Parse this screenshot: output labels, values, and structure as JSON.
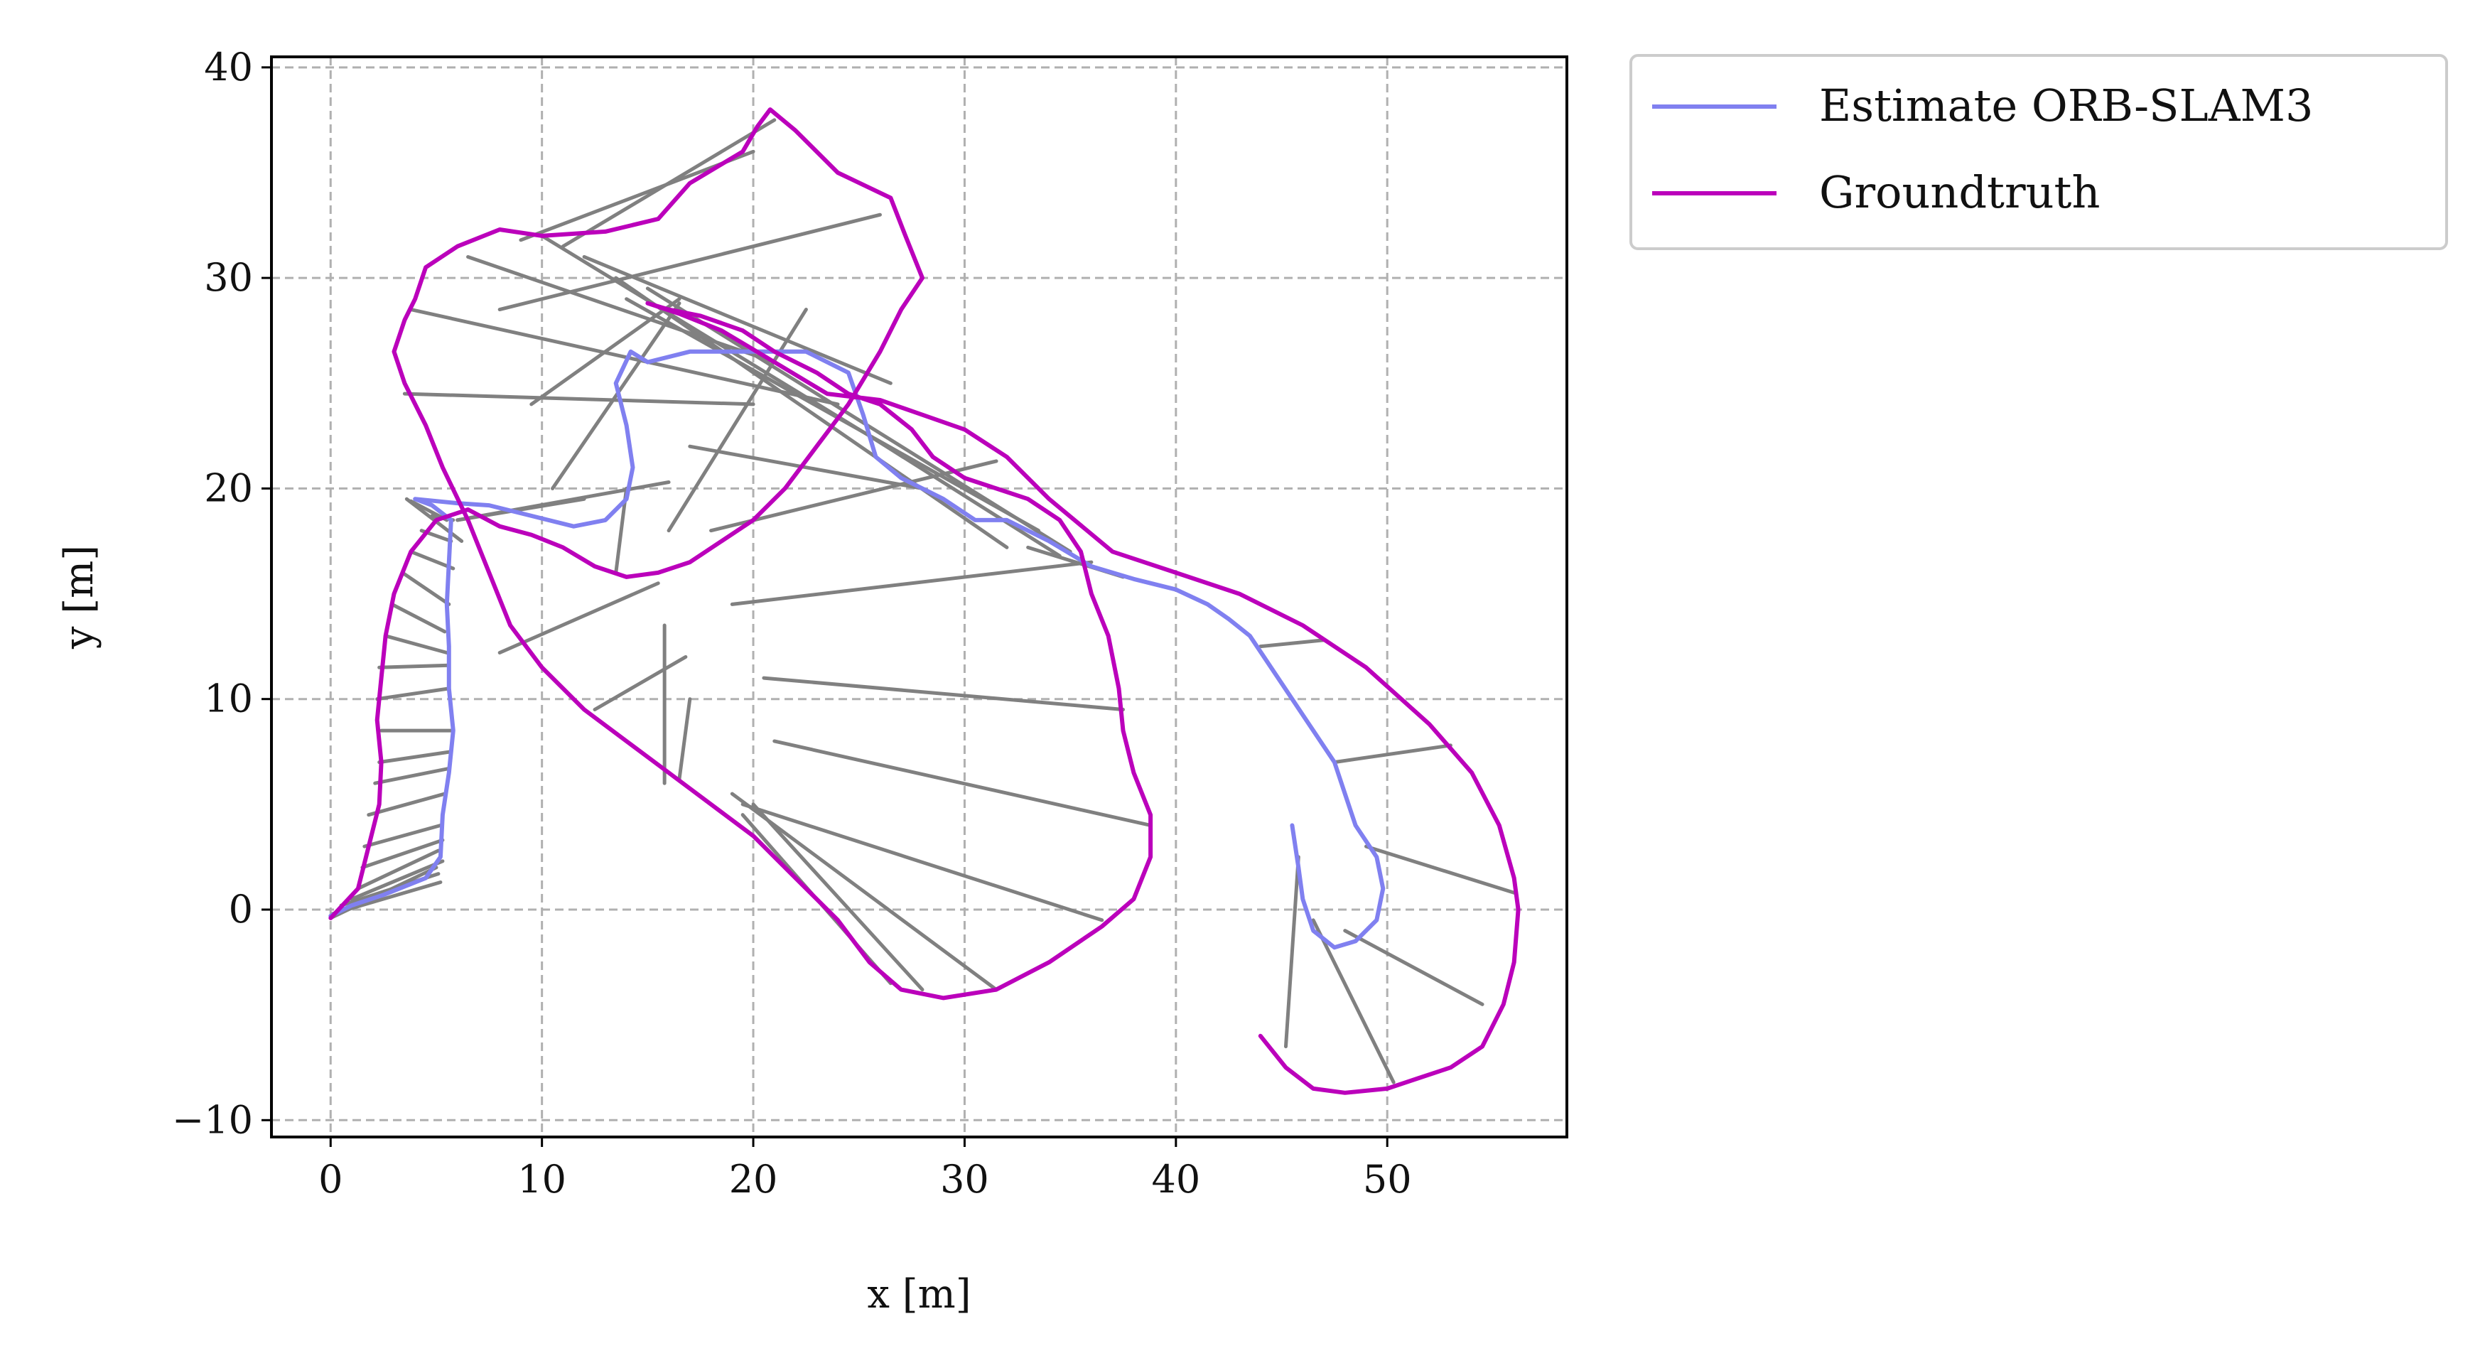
{
  "chart_data": {
    "type": "line",
    "xlabel": "x [m]",
    "ylabel": "y [m]",
    "xlim": [
      -2.8,
      58.5
    ],
    "ylim": [
      -10.8,
      40.5
    ],
    "xticks": [
      0,
      10,
      20,
      30,
      40,
      50
    ],
    "yticks": [
      -10,
      0,
      10,
      20,
      30,
      40
    ],
    "xtick_labels": [
      "0",
      "10",
      "20",
      "30",
      "40",
      "50"
    ],
    "ytick_labels": [
      "−10",
      "0",
      "10",
      "20",
      "30",
      "40"
    ],
    "grid": true,
    "legend_position": "outside-top-right",
    "colors": {
      "estimate": "#8080f0",
      "groundtruth": "#bb00bb",
      "error": "#808080"
    },
    "series": [
      {
        "name": "Estimate ORB-SLAM3",
        "points": [
          [
            0,
            -0.3
          ],
          [
            1,
            0.2
          ],
          [
            2.5,
            0.7
          ],
          [
            4.5,
            1.5
          ],
          [
            5.2,
            2.5
          ],
          [
            5.3,
            4.5
          ],
          [
            5.6,
            6.5
          ],
          [
            5.8,
            8.5
          ],
          [
            5.6,
            10.5
          ],
          [
            5.6,
            12.5
          ],
          [
            5.5,
            14.5
          ],
          [
            5.6,
            16.5
          ],
          [
            5.7,
            18.5
          ],
          [
            4.8,
            19.2
          ],
          [
            4.0,
            19.5
          ],
          [
            6.0,
            19.3
          ],
          [
            7.5,
            19.2
          ],
          [
            9.5,
            18.7
          ],
          [
            11.5,
            18.2
          ],
          [
            13.0,
            18.5
          ],
          [
            14.0,
            19.5
          ],
          [
            14.3,
            21.0
          ],
          [
            14.0,
            23.0
          ],
          [
            13.5,
            25.0
          ],
          [
            14.2,
            26.5
          ],
          [
            15.0,
            26.0
          ],
          [
            17.0,
            26.5
          ],
          [
            20.0,
            26.5
          ],
          [
            22.5,
            26.5
          ],
          [
            24.5,
            25.5
          ],
          [
            25.2,
            23.5
          ],
          [
            25.8,
            21.5
          ],
          [
            27.0,
            20.5
          ],
          [
            29.0,
            19.5
          ],
          [
            30.5,
            18.5
          ],
          [
            32.0,
            18.5
          ],
          [
            34.0,
            17.5
          ],
          [
            36.0,
            16.3
          ],
          [
            38.0,
            15.7
          ],
          [
            40.0,
            15.2
          ],
          [
            41.5,
            14.5
          ],
          [
            42.5,
            13.8
          ],
          [
            43.5,
            13.0
          ],
          [
            44.5,
            11.5
          ],
          [
            45.5,
            10.0
          ],
          [
            46.5,
            8.5
          ],
          [
            47.5,
            7.0
          ],
          [
            48.0,
            5.5
          ],
          [
            48.5,
            4.0
          ],
          [
            49.5,
            2.5
          ],
          [
            49.8,
            1.0
          ],
          [
            49.5,
            -0.5
          ],
          [
            48.5,
            -1.5
          ],
          [
            47.5,
            -1.8
          ],
          [
            46.5,
            -1.0
          ],
          [
            46.0,
            0.5
          ],
          [
            45.8,
            2.0
          ],
          [
            45.5,
            4.0
          ]
        ]
      },
      {
        "name": "Groundtruth",
        "points": [
          [
            0,
            -0.4
          ],
          [
            1.3,
            1.0
          ],
          [
            1.8,
            3.0
          ],
          [
            2.3,
            5.0
          ],
          [
            2.4,
            7.0
          ],
          [
            2.2,
            9.0
          ],
          [
            2.4,
            11.0
          ],
          [
            2.6,
            13.0
          ],
          [
            3.0,
            15.0
          ],
          [
            3.8,
            17.0
          ],
          [
            5.0,
            18.5
          ],
          [
            6.5,
            19.0
          ],
          [
            8.0,
            18.2
          ],
          [
            9.5,
            17.8
          ],
          [
            11.0,
            17.2
          ],
          [
            12.5,
            16.3
          ],
          [
            14.0,
            15.8
          ],
          [
            15.5,
            16.0
          ],
          [
            17.0,
            16.5
          ],
          [
            18.5,
            17.5
          ],
          [
            20.0,
            18.5
          ],
          [
            21.5,
            20.0
          ],
          [
            23.0,
            22.0
          ],
          [
            24.5,
            24.0
          ],
          [
            26.0,
            26.5
          ],
          [
            27.0,
            28.5
          ],
          [
            28.0,
            30.0
          ],
          [
            27.2,
            32.0
          ],
          [
            26.5,
            33.8
          ],
          [
            24.0,
            35.0
          ],
          [
            22.0,
            37.0
          ],
          [
            20.8,
            38.0
          ],
          [
            20.2,
            37.2
          ],
          [
            19.5,
            36.0
          ],
          [
            17.0,
            34.5
          ],
          [
            15.5,
            32.8
          ],
          [
            13.0,
            32.2
          ],
          [
            10.0,
            32.0
          ],
          [
            8.0,
            32.3
          ],
          [
            6.0,
            31.5
          ],
          [
            4.5,
            30.5
          ],
          [
            4.0,
            29.0
          ],
          [
            3.5,
            28.0
          ],
          [
            3.0,
            26.5
          ],
          [
            3.5,
            25.0
          ],
          [
            4.5,
            23.0
          ],
          [
            5.3,
            21.0
          ],
          [
            6.5,
            18.5
          ],
          [
            7.5,
            16.0
          ],
          [
            8.5,
            13.5
          ],
          [
            10.0,
            11.5
          ],
          [
            12.0,
            9.5
          ],
          [
            14.0,
            8.0
          ],
          [
            16.0,
            6.5
          ],
          [
            18.0,
            5.0
          ],
          [
            20.0,
            3.5
          ],
          [
            22.0,
            1.5
          ],
          [
            24.0,
            -0.5
          ],
          [
            25.5,
            -2.5
          ],
          [
            27.0,
            -3.8
          ],
          [
            29.0,
            -4.2
          ],
          [
            31.5,
            -3.8
          ],
          [
            34.0,
            -2.5
          ],
          [
            36.5,
            -0.8
          ],
          [
            38.0,
            0.5
          ],
          [
            38.8,
            2.5
          ],
          [
            38.8,
            4.5
          ],
          [
            38.0,
            6.5
          ],
          [
            37.5,
            8.5
          ],
          [
            37.3,
            10.5
          ],
          [
            36.8,
            13.0
          ],
          [
            36.0,
            15.0
          ],
          [
            35.5,
            17.0
          ],
          [
            34.5,
            18.5
          ],
          [
            33.0,
            19.5
          ],
          [
            31.5,
            20.0
          ],
          [
            30.0,
            20.5
          ],
          [
            28.5,
            21.5
          ],
          [
            27.5,
            22.8
          ],
          [
            26.0,
            24.0
          ],
          [
            24.5,
            24.5
          ],
          [
            23.0,
            25.5
          ],
          [
            21.0,
            26.5
          ],
          [
            19.5,
            27.5
          ],
          [
            17.5,
            28.2
          ],
          [
            16.0,
            28.5
          ],
          [
            15.0,
            28.8
          ],
          [
            16.5,
            28.3
          ],
          [
            18.5,
            27.5
          ],
          [
            21.0,
            26.0
          ],
          [
            23.5,
            24.5
          ],
          [
            26.0,
            24.2
          ],
          [
            28.0,
            23.5
          ],
          [
            30.0,
            22.8
          ],
          [
            32.0,
            21.5
          ],
          [
            34.0,
            19.5
          ],
          [
            37.0,
            17.0
          ],
          [
            40.0,
            16.0
          ],
          [
            43.0,
            15.0
          ],
          [
            46.0,
            13.5
          ],
          [
            49.0,
            11.5
          ],
          [
            52.0,
            8.8
          ],
          [
            54.0,
            6.5
          ],
          [
            55.3,
            4.0
          ],
          [
            56.0,
            1.5
          ],
          [
            56.2,
            0
          ],
          [
            56.0,
            -2.5
          ],
          [
            55.5,
            -4.5
          ],
          [
            54.5,
            -6.5
          ],
          [
            53.0,
            -7.5
          ],
          [
            51.5,
            -8.0
          ],
          [
            50.0,
            -8.5
          ],
          [
            48.0,
            -8.7
          ],
          [
            46.5,
            -8.5
          ],
          [
            45.2,
            -7.5
          ],
          [
            44.0,
            -6.0
          ]
        ]
      }
    ],
    "error_segments": [
      [
        [
          0,
          -0.4
        ],
        [
          5.0,
          2.0
        ]
      ],
      [
        [
          0.1,
          -0.2
        ],
        [
          5.2,
          1.3
        ]
      ],
      [
        [
          0.5,
          0.2
        ],
        [
          5.1,
          1.7
        ]
      ],
      [
        [
          1.0,
          0.5
        ],
        [
          5.3,
          2.3
        ]
      ],
      [
        [
          1.3,
          1.0
        ],
        [
          5.1,
          2.8
        ]
      ],
      [
        [
          1.5,
          2.0
        ],
        [
          5.3,
          3.3
        ]
      ],
      [
        [
          1.6,
          3.0
        ],
        [
          5.2,
          4.0
        ]
      ],
      [
        [
          1.8,
          4.5
        ],
        [
          5.4,
          5.5
        ]
      ],
      [
        [
          2.1,
          6.0
        ],
        [
          5.6,
          6.7
        ]
      ],
      [
        [
          2.3,
          7.0
        ],
        [
          5.7,
          7.5
        ]
      ],
      [
        [
          2.4,
          8.5
        ],
        [
          5.8,
          8.5
        ]
      ],
      [
        [
          2.2,
          10.0
        ],
        [
          5.6,
          10.5
        ]
      ],
      [
        [
          2.3,
          11.5
        ],
        [
          5.6,
          11.6
        ]
      ],
      [
        [
          2.6,
          13.0
        ],
        [
          5.5,
          12.2
        ]
      ],
      [
        [
          2.9,
          14.5
        ],
        [
          5.4,
          13.2
        ]
      ],
      [
        [
          3.4,
          16.0
        ],
        [
          5.6,
          14.5
        ]
      ],
      [
        [
          3.8,
          17.0
        ],
        [
          5.8,
          16.2
        ]
      ],
      [
        [
          4.3,
          18.0
        ],
        [
          5.7,
          17.5
        ]
      ],
      [
        [
          4.8,
          18.7
        ],
        [
          5.8,
          18.5
        ]
      ],
      [
        [
          3.6,
          19.5
        ],
        [
          6.2,
          17.5
        ]
      ],
      [
        [
          3.8,
          19.4
        ],
        [
          5.5,
          18.5
        ]
      ],
      [
        [
          8.0,
          12.2
        ],
        [
          15.5,
          15.5
        ]
      ],
      [
        [
          12.5,
          9.5
        ],
        [
          16.8,
          12.0
        ]
      ],
      [
        [
          16.5,
          6.2
        ],
        [
          17.0,
          10.0
        ]
      ],
      [
        [
          15.8,
          6.0
        ],
        [
          15.8,
          13.5
        ]
      ],
      [
        [
          13.5,
          16.0
        ],
        [
          14.0,
          20.0
        ]
      ],
      [
        [
          6.0,
          18.5
        ],
        [
          16.0,
          20.3
        ]
      ],
      [
        [
          6.0,
          18.5
        ],
        [
          12.0,
          19.5
        ]
      ],
      [
        [
          10.5,
          20.0
        ],
        [
          16.5,
          28.8
        ]
      ],
      [
        [
          9.5,
          24.0
        ],
        [
          16.5,
          29.0
        ]
      ],
      [
        [
          3.5,
          24.5
        ],
        [
          20.0,
          24.0
        ]
      ],
      [
        [
          3.8,
          28.5
        ],
        [
          24.0,
          24.0
        ]
      ],
      [
        [
          6.5,
          31.0
        ],
        [
          21.0,
          26.0
        ]
      ],
      [
        [
          8.0,
          28.5
        ],
        [
          26.0,
          33.0
        ]
      ],
      [
        [
          11.0,
          31.5
        ],
        [
          21.0,
          37.5
        ]
      ],
      [
        [
          9.0,
          31.8
        ],
        [
          20.0,
          36.0
        ]
      ],
      [
        [
          10.0,
          32.0
        ],
        [
          25.5,
          22.5
        ]
      ],
      [
        [
          12.0,
          31.0
        ],
        [
          26.5,
          25.0
        ]
      ],
      [
        [
          16.0,
          18.0
        ],
        [
          22.5,
          28.5
        ]
      ],
      [
        [
          17.0,
          22.0
        ],
        [
          28.0,
          20.0
        ]
      ],
      [
        [
          19.0,
          14.5
        ],
        [
          36.0,
          16.5
        ]
      ],
      [
        [
          18.0,
          18.0
        ],
        [
          31.5,
          21.3
        ]
      ],
      [
        [
          20.5,
          11.0
        ],
        [
          37.5,
          9.5
        ]
      ],
      [
        [
          21.0,
          8.0
        ],
        [
          38.8,
          4.0
        ]
      ],
      [
        [
          19.5,
          5.0
        ],
        [
          36.5,
          -0.5
        ]
      ],
      [
        [
          19.0,
          5.5
        ],
        [
          31.5,
          -3.8
        ]
      ],
      [
        [
          19.5,
          4.5
        ],
        [
          26.5,
          -3.5
        ]
      ],
      [
        [
          20.0,
          5.0
        ],
        [
          28.0,
          -3.8
        ]
      ],
      [
        [
          14.0,
          29.0
        ],
        [
          33.5,
          18.0
        ]
      ],
      [
        [
          13.5,
          30.0
        ],
        [
          32.0,
          17.2
        ]
      ],
      [
        [
          15.0,
          29.5
        ],
        [
          35.0,
          17.0
        ]
      ],
      [
        [
          25.5,
          22.5
        ],
        [
          34.5,
          16.8
        ]
      ],
      [
        [
          33.0,
          17.2
        ],
        [
          37.5,
          15.8
        ]
      ],
      [
        [
          44.0,
          12.5
        ],
        [
          47.0,
          12.8
        ]
      ],
      [
        [
          47.5,
          7.0
        ],
        [
          53.0,
          7.8
        ]
      ],
      [
        [
          49.0,
          3.0
        ],
        [
          56.0,
          0.8
        ]
      ],
      [
        [
          48.0,
          -1.0
        ],
        [
          54.5,
          -4.5
        ]
      ],
      [
        [
          46.5,
          -0.5
        ],
        [
          50.3,
          -8.2
        ]
      ],
      [
        [
          45.8,
          2.5
        ],
        [
          45.2,
          -6.5
        ]
      ]
    ],
    "legend": [
      "Estimate ORB-SLAM3",
      "Groundtruth"
    ]
  }
}
